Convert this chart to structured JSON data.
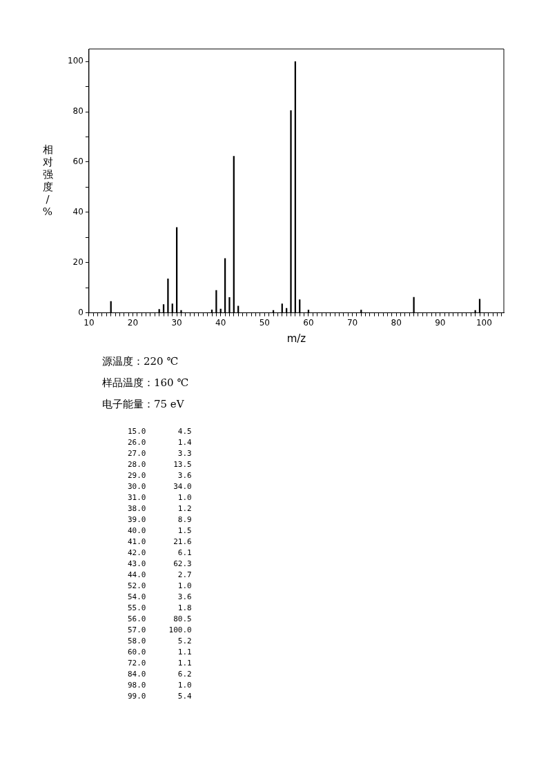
{
  "chart_data": {
    "type": "bar",
    "xlabel": "m/z",
    "ylabel": "相对强度/%",
    "x": [
      15,
      26,
      27,
      28,
      29,
      30,
      31,
      38,
      39,
      40,
      41,
      42,
      43,
      44,
      52,
      54,
      55,
      56,
      57,
      58,
      60,
      72,
      84,
      98,
      99
    ],
    "values": [
      4.5,
      1.4,
      3.3,
      13.5,
      3.6,
      34.0,
      1.0,
      1.2,
      8.9,
      1.5,
      21.6,
      6.1,
      62.3,
      2.7,
      1.0,
      3.6,
      1.8,
      80.5,
      100.0,
      5.2,
      1.1,
      1.1,
      6.2,
      1.0,
      5.4
    ],
    "color": "#000000",
    "xlim": [
      10,
      104.5
    ],
    "ylim": [
      0,
      105
    ],
    "xticks": [
      10,
      {
        "value": 11,
        "label": null
      },
      {
        "value": 12,
        "label": null
      },
      {
        "value": 13,
        "label": null
      },
      {
        "value": 14,
        "label": null
      },
      {
        "value": 15,
        "label": null
      },
      {
        "value": 16,
        "label": null
      },
      {
        "value": 17,
        "label": null
      },
      {
        "value": 18,
        "label": null
      },
      {
        "value": 19,
        "label": null
      },
      20,
      {
        "value": 21,
        "label": null
      },
      {
        "value": 22,
        "label": null
      },
      {
        "value": 23,
        "label": null
      },
      {
        "value": 24,
        "label": null
      },
      {
        "value": 25,
        "label": null
      },
      {
        "value": 26,
        "label": null
      },
      {
        "value": 27,
        "label": null
      },
      {
        "value": 28,
        "label": null
      },
      {
        "value": 29,
        "label": null
      },
      30,
      {
        "value": 31,
        "label": null
      },
      {
        "value": 32,
        "label": null
      },
      {
        "value": 33,
        "label": null
      },
      {
        "value": 34,
        "label": null
      },
      {
        "value": 35,
        "label": null
      },
      {
        "value": 36,
        "label": null
      },
      {
        "value": 37,
        "label": null
      },
      {
        "value": 38,
        "label": null
      },
      {
        "value": 39,
        "label": null
      },
      40,
      {
        "value": 41,
        "label": null
      },
      {
        "value": 42,
        "label": null
      },
      {
        "value": 43,
        "label": null
      },
      {
        "value": 44,
        "label": null
      },
      {
        "value": 45,
        "label": null
      },
      {
        "value": 46,
        "label": null
      },
      {
        "value": 47,
        "label": null
      },
      {
        "value": 48,
        "label": null
      },
      {
        "value": 49,
        "label": null
      },
      50,
      {
        "value": 51,
        "label": null
      },
      {
        "value": 52,
        "label": null
      },
      {
        "value": 53,
        "label": null
      },
      {
        "value": 54,
        "label": null
      },
      {
        "value": 55,
        "label": null
      },
      {
        "value": 56,
        "label": null
      },
      {
        "value": 57,
        "label": null
      },
      {
        "value": 58,
        "label": null
      },
      {
        "value": 59,
        "label": null
      },
      60,
      {
        "value": 61,
        "label": null
      },
      {
        "value": 62,
        "label": null
      },
      {
        "value": 63,
        "label": null
      },
      {
        "value": 64,
        "label": null
      },
      {
        "value": 65,
        "label": null
      },
      {
        "value": 66,
        "label": null
      },
      {
        "value": 67,
        "label": null
      },
      {
        "value": 68,
        "label": null
      },
      {
        "value": 69,
        "label": null
      },
      70,
      {
        "value": 71,
        "label": null
      },
      {
        "value": 72,
        "label": null
      },
      {
        "value": 73,
        "label": null
      },
      {
        "value": 74,
        "label": null
      },
      {
        "value": 75,
        "label": null
      },
      {
        "value": 76,
        "label": null
      },
      {
        "value": 77,
        "label": null
      },
      {
        "value": 78,
        "label": null
      },
      {
        "value": 79,
        "label": null
      },
      80,
      {
        "value": 81,
        "label": null
      },
      {
        "value": 82,
        "label": null
      },
      {
        "value": 83,
        "label": null
      },
      {
        "value": 84,
        "label": null
      },
      {
        "value": 85,
        "label": null
      },
      {
        "value": 86,
        "label": null
      },
      {
        "value": 87,
        "label": null
      },
      {
        "value": 88,
        "label": null
      },
      {
        "value": 89,
        "label": null
      },
      90,
      {
        "value": 91,
        "label": null
      },
      {
        "value": 92,
        "label": null
      },
      {
        "value": 93,
        "label": null
      },
      {
        "value": 94,
        "label": null
      },
      {
        "value": 95,
        "label": null
      },
      {
        "value": 96,
        "label": null
      },
      {
        "value": 97,
        "label": null
      },
      {
        "value": 98,
        "label": null
      },
      {
        "value": 99,
        "label": null
      },
      100,
      {
        "value": 101,
        "label": null
      },
      {
        "value": 102,
        "label": null
      },
      {
        "value": 103,
        "label": null
      },
      {
        "value": 104,
        "label": null
      }
    ],
    "yticks": [
      0,
      {
        "value": 10,
        "label": null
      },
      20,
      {
        "value": 30,
        "label": null
      },
      40,
      {
        "value": 50,
        "label": null
      },
      60,
      {
        "value": 70,
        "label": null
      },
      80,
      {
        "value": 90,
        "label": null
      },
      100
    ],
    "grid": false,
    "legend": false,
    "annotations": [
      "源温度：220 ℃",
      "样品温度：160 ℃",
      "电子能量：75 eV",
      "15.0       4.5",
      "26.0       1.4",
      "27.0       3.3",
      "28.0      13.5",
      "29.0       3.6",
      "30.0      34.0",
      "31.0       1.0",
      "38.0       1.2",
      "39.0       8.9",
      "40.0       1.5",
      "41.0      21.6",
      "42.0       6.1",
      "43.0      62.3",
      "44.0       2.7",
      "52.0       1.0",
      "54.0       3.6",
      "55.0       1.8",
      "56.0      80.5",
      "57.0     100.0",
      "58.0       5.2",
      "60.0       1.1",
      "72.0       1.1",
      "84.0       6.2",
      "98.0       1.0",
      "99.0       5.4"
    ]
  }
}
